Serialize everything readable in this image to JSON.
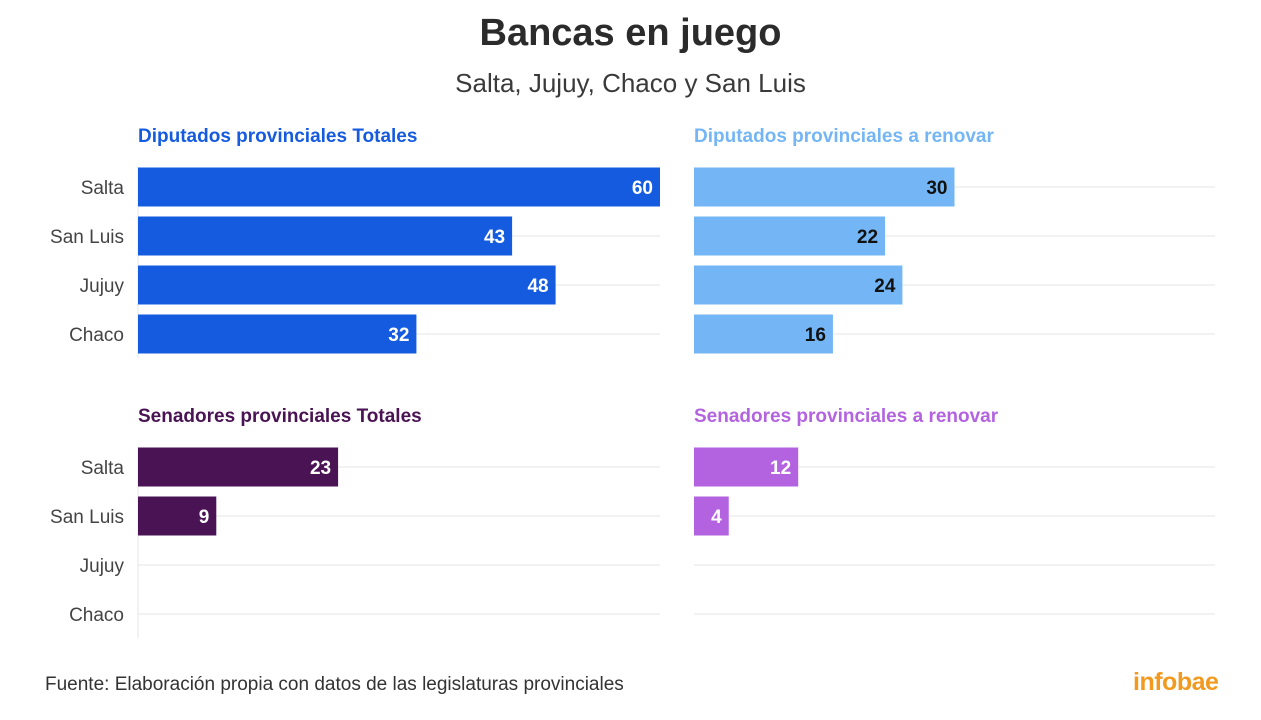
{
  "header": {
    "title": "Bancas en juego",
    "subtitle": "Salta, Jujuy, Chaco y San Luis"
  },
  "footer": {
    "source": "Fuente: Elaboración propia con datos de las legislaturas provinciales",
    "logo": "infobae"
  },
  "chart_data": [
    {
      "type": "bar",
      "orientation": "horizontal",
      "title": "Diputados provinciales Totales",
      "categories": [
        "Salta",
        "San Luis",
        "Jujuy",
        "Chaco"
      ],
      "values": [
        60,
        43,
        48,
        32
      ],
      "xlim": [
        0,
        60
      ],
      "color": "#155be0",
      "label_color": "#ffffff",
      "grid": true
    },
    {
      "type": "bar",
      "orientation": "horizontal",
      "title": "Diputados provinciales a renovar",
      "categories": [
        "Salta",
        "San Luis",
        "Jujuy",
        "Chaco"
      ],
      "values": [
        30,
        22,
        24,
        16
      ],
      "xlim": [
        0,
        60
      ],
      "color": "#74b6f5",
      "label_color": "#111111",
      "grid": true
    },
    {
      "type": "bar",
      "orientation": "horizontal",
      "title": "Senadores provinciales Totales",
      "categories": [
        "Salta",
        "San Luis",
        "Jujuy",
        "Chaco"
      ],
      "values": [
        23,
        9,
        null,
        null
      ],
      "xlim": [
        0,
        60
      ],
      "color": "#4a1454",
      "label_color": "#ffffff",
      "grid": true
    },
    {
      "type": "bar",
      "orientation": "horizontal",
      "title": "Senadores provinciales a renovar",
      "categories": [
        "Salta",
        "San Luis",
        "Jujuy",
        "Chaco"
      ],
      "values": [
        12,
        4,
        null,
        null
      ],
      "xlim": [
        0,
        60
      ],
      "color": "#b463e0",
      "label_color": "#ffffff",
      "grid": true
    }
  ]
}
